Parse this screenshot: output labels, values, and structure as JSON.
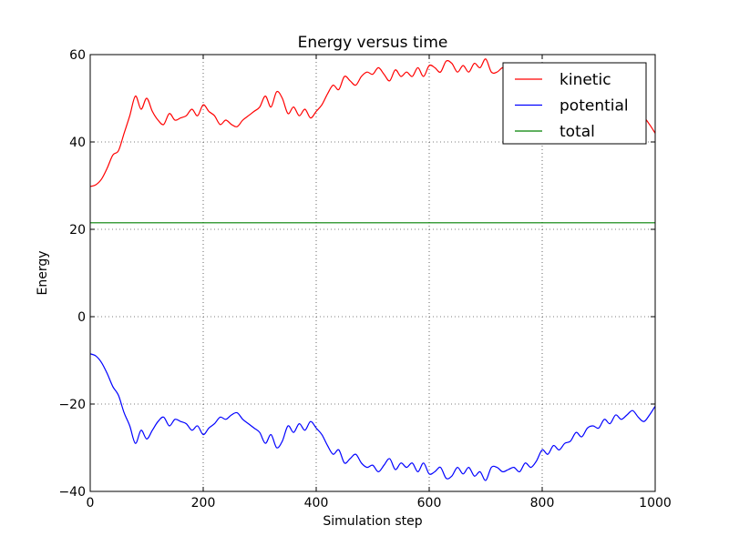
{
  "chart_data": {
    "type": "line",
    "title": "Energy versus time",
    "xlabel": "Simulation step",
    "ylabel": "Energy",
    "xlim": [
      0,
      1000
    ],
    "ylim": [
      -40,
      60
    ],
    "xticks": [
      0,
      200,
      400,
      600,
      800,
      1000
    ],
    "yticks": [
      -40,
      -20,
      0,
      20,
      40,
      60
    ],
    "xtick_labels": [
      "0",
      "200",
      "400",
      "600",
      "800",
      "1000"
    ],
    "ytick_labels": [
      "−40",
      "−20",
      "0",
      "20",
      "40",
      "60"
    ],
    "grid": true,
    "legend_position": "top-right",
    "series": [
      {
        "name": "kinetic",
        "color": "#ff0000",
        "x": [
          0,
          10,
          20,
          30,
          40,
          50,
          60,
          70,
          80,
          90,
          100,
          110,
          120,
          130,
          140,
          150,
          160,
          170,
          180,
          190,
          200,
          210,
          220,
          230,
          240,
          250,
          260,
          270,
          280,
          290,
          300,
          310,
          320,
          330,
          340,
          350,
          360,
          370,
          380,
          390,
          400,
          410,
          420,
          430,
          440,
          450,
          460,
          470,
          480,
          490,
          500,
          510,
          520,
          530,
          540,
          550,
          560,
          570,
          580,
          590,
          600,
          610,
          620,
          630,
          640,
          650,
          660,
          670,
          680,
          690,
          700,
          710,
          720,
          730,
          740,
          750,
          760,
          770,
          780,
          790,
          800,
          810,
          820,
          830,
          840,
          850,
          860,
          870,
          880,
          890,
          900,
          910,
          920,
          930,
          940,
          950,
          960,
          970,
          980,
          990,
          1000
        ],
        "y": [
          29.8,
          30.2,
          31.5,
          34,
          37,
          38,
          42,
          46,
          50.5,
          47.5,
          50,
          47,
          45,
          44,
          46.5,
          45,
          45.5,
          46,
          47.5,
          46,
          48.5,
          47,
          46,
          44,
          45,
          44,
          43.5,
          45,
          46,
          47,
          48,
          50.5,
          48,
          51.5,
          50,
          46.5,
          48,
          46,
          47.5,
          45.5,
          47,
          48.5,
          51,
          53,
          52,
          55,
          54,
          53,
          55,
          56,
          55.5,
          57,
          55.5,
          54,
          56.5,
          55,
          56,
          55,
          57,
          55,
          57.5,
          57,
          56,
          58.5,
          58,
          56,
          57.5,
          56,
          58,
          57,
          59,
          56,
          56,
          57,
          56.5,
          56,
          57,
          55,
          56,
          54.5,
          52,
          53,
          51,
          52,
          50.5,
          50,
          48,
          49,
          47,
          46.5,
          47,
          45,
          46,
          44,
          45,
          44,
          43,
          44.5,
          45.5,
          44,
          42
        ]
      },
      {
        "name": "potential",
        "color": "#0000ff",
        "x": [
          0,
          10,
          20,
          30,
          40,
          50,
          60,
          70,
          80,
          90,
          100,
          110,
          120,
          130,
          140,
          150,
          160,
          170,
          180,
          190,
          200,
          210,
          220,
          230,
          240,
          250,
          260,
          270,
          280,
          290,
          300,
          310,
          320,
          330,
          340,
          350,
          360,
          370,
          380,
          390,
          400,
          410,
          420,
          430,
          440,
          450,
          460,
          470,
          480,
          490,
          500,
          510,
          520,
          530,
          540,
          550,
          560,
          570,
          580,
          590,
          600,
          610,
          620,
          630,
          640,
          650,
          660,
          670,
          680,
          690,
          700,
          710,
          720,
          730,
          740,
          750,
          760,
          770,
          780,
          790,
          800,
          810,
          820,
          830,
          840,
          850,
          860,
          870,
          880,
          890,
          900,
          910,
          920,
          930,
          940,
          950,
          960,
          970,
          980,
          990,
          1000
        ],
        "y": [
          -8.5,
          -9,
          -10.5,
          -13,
          -16,
          -18,
          -22,
          -25,
          -29,
          -26,
          -28,
          -26,
          -24,
          -23,
          -25,
          -23.5,
          -24,
          -24.5,
          -26,
          -25,
          -27,
          -25.5,
          -24.5,
          -23,
          -23.5,
          -22.5,
          -22,
          -23.5,
          -24.5,
          -25.5,
          -26.5,
          -29,
          -27,
          -30,
          -28.5,
          -25,
          -26.5,
          -24.5,
          -26,
          -24,
          -25.5,
          -27,
          -29.5,
          -31.5,
          -30.5,
          -33.5,
          -32.5,
          -31.5,
          -33.5,
          -34.5,
          -34,
          -35.5,
          -34,
          -32.5,
          -35,
          -33.5,
          -34.5,
          -33.5,
          -35.5,
          -33.5,
          -36,
          -35.5,
          -34.5,
          -37,
          -36.5,
          -34.5,
          -36,
          -34.5,
          -36.5,
          -35.5,
          -37.5,
          -34.5,
          -34.5,
          -35.5,
          -35,
          -34.5,
          -35.5,
          -33.5,
          -34.5,
          -33,
          -30.5,
          -31.5,
          -29.5,
          -30.5,
          -29,
          -28.5,
          -26.5,
          -27.5,
          -25.5,
          -25,
          -25.5,
          -23.5,
          -24.5,
          -22.5,
          -23.5,
          -22.5,
          -21.5,
          -23,
          -24,
          -22.5,
          -20.5
        ]
      },
      {
        "name": "total",
        "color": "#008000",
        "x": [
          0,
          1000
        ],
        "y": [
          21.5,
          21.5
        ]
      }
    ]
  }
}
